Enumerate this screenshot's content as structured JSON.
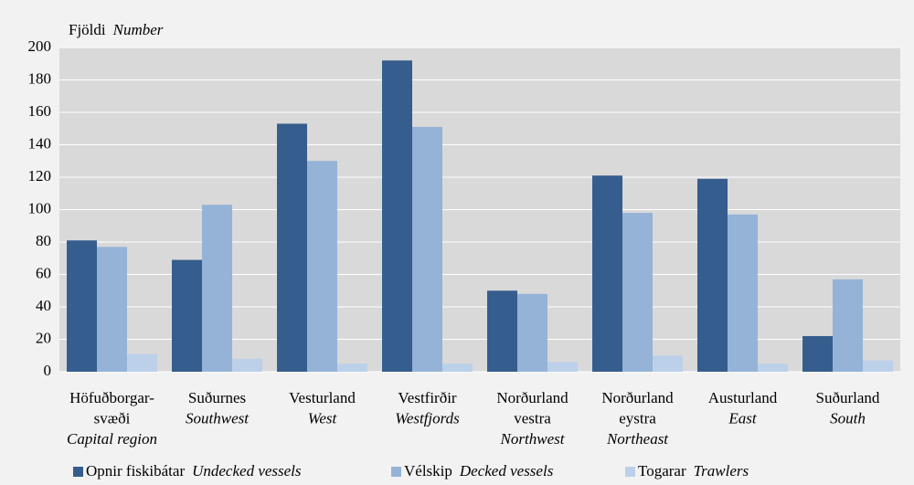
{
  "chart_data": {
    "type": "bar",
    "ylabel": "Fjöldi",
    "ylabel_en": "Number",
    "categories": [
      {
        "lines": [
          "Höfuðborgar-",
          "svæði"
        ],
        "en": "Capital region"
      },
      {
        "lines": [
          "Suðurnes"
        ],
        "en": "Southwest"
      },
      {
        "lines": [
          "Vesturland"
        ],
        "en": "West"
      },
      {
        "lines": [
          "Vestfirðir"
        ],
        "en": "Westfjords"
      },
      {
        "lines": [
          "Norðurland",
          "vestra"
        ],
        "en": "Northwest"
      },
      {
        "lines": [
          "Norðurland",
          "eystra"
        ],
        "en": "Northeast"
      },
      {
        "lines": [
          "Austurland"
        ],
        "en": "East"
      },
      {
        "lines": [
          "Suðurland"
        ],
        "en": "South"
      }
    ],
    "series": [
      {
        "name": "Opnir fiskibátar",
        "name_en": "Undecked vessels",
        "color": "#355d8e",
        "values": [
          81,
          69,
          153,
          192,
          50,
          121,
          119,
          22
        ]
      },
      {
        "name": "Vélskip",
        "name_en": "Decked vessels",
        "color": "#95b3d7",
        "values": [
          77,
          103,
          130,
          151,
          48,
          98,
          97,
          57
        ]
      },
      {
        "name": "Togarar",
        "name_en": "Trawlers",
        "color": "#bdd0e9",
        "values": [
          11,
          8,
          5,
          5,
          6,
          10,
          5,
          7
        ]
      }
    ],
    "ylim": [
      0,
      200
    ],
    "yticks": [
      0,
      20,
      40,
      60,
      80,
      100,
      120,
      140,
      160,
      180,
      200
    ],
    "grid": true
  }
}
